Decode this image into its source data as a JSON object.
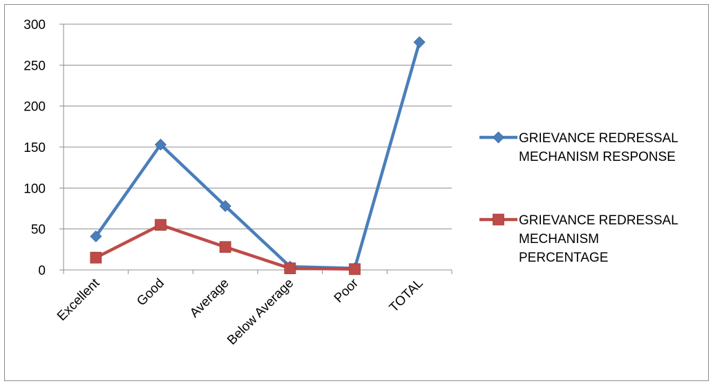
{
  "chart_data": {
    "type": "line",
    "categories": [
      "Excellent",
      "Good",
      "Average",
      "Below Average",
      "Poor",
      "TOTAL"
    ],
    "series": [
      {
        "name": "GRIEVANCE REDRESSAL MECHANISM RESPONSE",
        "name_lines": [
          "GRIEVANCE REDRESSAL",
          "MECHANISM RESPONSE"
        ],
        "values": [
          41,
          153,
          78,
          4,
          2,
          278
        ],
        "color": "#4a7ebb",
        "marker": "diamond"
      },
      {
        "name": "GRIEVANCE REDRESSAL MECHANISM PERCENTAGE",
        "name_lines": [
          "GRIEVANCE REDRESSAL",
          "MECHANISM",
          "PERCENTAGE"
        ],
        "values": [
          15,
          55,
          28,
          2,
          1,
          null
        ],
        "color": "#be4b48",
        "marker": "square"
      }
    ],
    "ylim": [
      0,
      300
    ],
    "yticks": [
      0,
      50,
      100,
      150,
      200,
      250,
      300
    ],
    "grid": true,
    "legend_position": "right",
    "title": "",
    "xlabel": "",
    "ylabel": ""
  }
}
